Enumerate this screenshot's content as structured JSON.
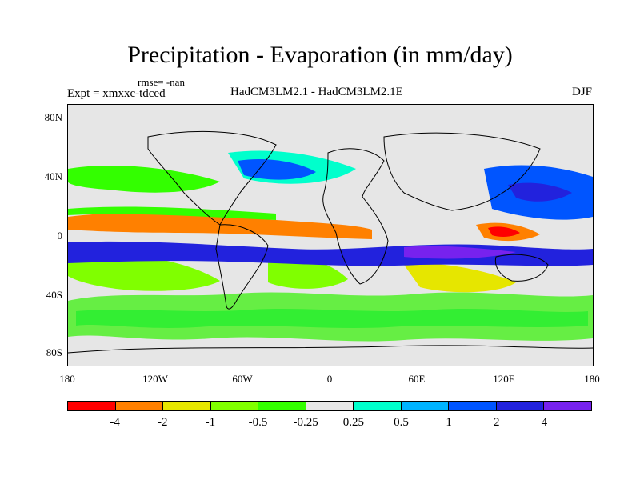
{
  "title": "Precipitation - Evaporation (in mm/day)",
  "rmse_label": "rmse= -nan",
  "expt_label": "Expt = xmxxc-tdced",
  "models_label": "HadCM3LM2.1 - HadCM3LM2.1E",
  "season_label": "DJF",
  "axes": {
    "y_ticks": [
      "80N",
      "40N",
      "0",
      "40S",
      "80S"
    ],
    "x_ticks": [
      "180",
      "120W",
      "60W",
      "0",
      "60E",
      "120E",
      "180"
    ]
  },
  "colorbar": {
    "colors": [
      "#ff0000",
      "#ff8000",
      "#e6e600",
      "#80ff00",
      "#33ff00",
      "#e6e6e6",
      "#00ffcc",
      "#00b3ff",
      "#0055ff",
      "#2222dd",
      "#7722ee"
    ],
    "labels": [
      "-4",
      "-2",
      "-1",
      "-0.5",
      "-0.25",
      "0.25",
      "0.5",
      "1",
      "2",
      "4"
    ]
  }
}
